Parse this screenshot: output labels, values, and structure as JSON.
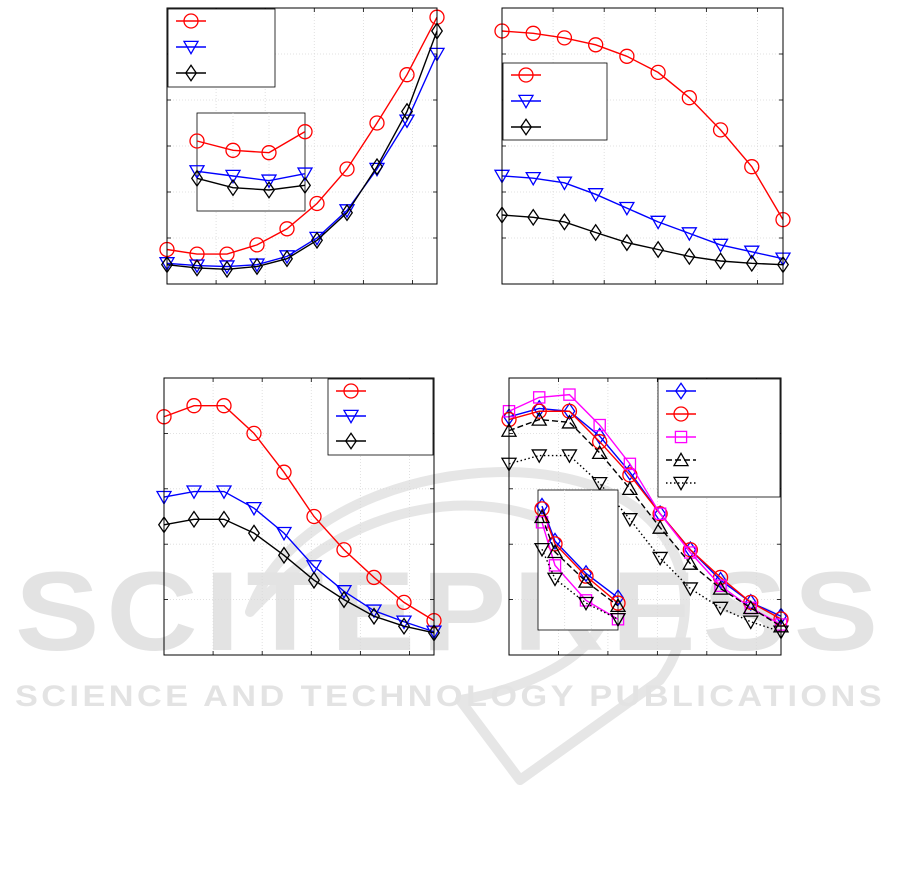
{
  "watermark": {
    "main": "SCITEPRESS",
    "sub": "SCIENCE AND TECHNOLOGY PUBLICATIONS",
    "color": "#e3e3e3"
  },
  "chart_data": [
    {
      "type": "line",
      "title": "",
      "xlabel": "",
      "ylabel": "",
      "x": [
        1,
        2,
        3,
        4,
        5,
        6,
        7,
        8,
        9,
        10
      ],
      "xlim": [
        1,
        10
      ],
      "ylim": [
        0,
        6
      ],
      "grid": true,
      "legend": "top-left",
      "series": [
        {
          "color": "#ff0000",
          "marker": "circle",
          "values": [
            0.75,
            0.65,
            0.65,
            0.85,
            1.2,
            1.75,
            2.5,
            3.5,
            4.55,
            5.8
          ]
        },
        {
          "color": "#0000ff",
          "marker": "triangle-down",
          "values": [
            0.45,
            0.4,
            0.38,
            0.42,
            0.6,
            1.0,
            1.6,
            2.5,
            3.55,
            5.0
          ]
        },
        {
          "color": "#000000",
          "marker": "diamond",
          "values": [
            0.42,
            0.35,
            0.32,
            0.38,
            0.55,
            0.95,
            1.55,
            2.55,
            3.75,
            5.5
          ]
        }
      ],
      "inset": {
        "series": [
          {
            "color": "#ff0000",
            "marker": "circle",
            "values": [
              3.0,
              2.8,
              2.75,
              3.2
            ]
          },
          {
            "color": "#0000ff",
            "marker": "triangle-down",
            "values": [
              2.35,
              2.25,
              2.15,
              2.3
            ]
          },
          {
            "color": "#000000",
            "marker": "diamond",
            "values": [
              2.2,
              2.0,
              1.95,
              2.05
            ]
          }
        ]
      }
    },
    {
      "type": "line",
      "title": "",
      "xlabel": "",
      "ylabel": "",
      "x": [
        1,
        2,
        3,
        4,
        5,
        6,
        7,
        8,
        9,
        10
      ],
      "xlim": [
        1,
        10
      ],
      "ylim": [
        0,
        6
      ],
      "grid": true,
      "legend": "center-left",
      "series": [
        {
          "color": "#ff0000",
          "marker": "circle",
          "values": [
            5.5,
            5.45,
            5.35,
            5.2,
            4.95,
            4.6,
            4.05,
            3.35,
            2.55,
            1.4
          ]
        },
        {
          "color": "#0000ff",
          "marker": "triangle-down",
          "values": [
            2.35,
            2.3,
            2.2,
            1.95,
            1.65,
            1.35,
            1.1,
            0.85,
            0.7,
            0.55
          ]
        },
        {
          "color": "#000000",
          "marker": "diamond",
          "values": [
            1.5,
            1.45,
            1.35,
            1.12,
            0.9,
            0.75,
            0.6,
            0.5,
            0.45,
            0.42
          ]
        }
      ]
    },
    {
      "type": "line",
      "title": "",
      "xlabel": "",
      "ylabel": "",
      "x": [
        1,
        2,
        3,
        4,
        5,
        6,
        7,
        8,
        9,
        10
      ],
      "xlim": [
        1,
        10
      ],
      "ylim": [
        0,
        5
      ],
      "grid": true,
      "legend": "top-right",
      "series": [
        {
          "color": "#ff0000",
          "marker": "circle",
          "values": [
            4.3,
            4.5,
            4.5,
            4.0,
            3.3,
            2.5,
            1.9,
            1.4,
            0.95,
            0.62
          ]
        },
        {
          "color": "#0000ff",
          "marker": "triangle-down",
          "values": [
            2.85,
            2.95,
            2.95,
            2.65,
            2.2,
            1.6,
            1.15,
            0.8,
            0.6,
            0.42
          ]
        },
        {
          "color": "#000000",
          "marker": "diamond",
          "values": [
            2.35,
            2.45,
            2.45,
            2.2,
            1.8,
            1.35,
            1.0,
            0.7,
            0.52,
            0.4
          ]
        }
      ]
    },
    {
      "type": "line",
      "title": "",
      "xlabel": "",
      "ylabel": "",
      "x": [
        1,
        2,
        3,
        4,
        5,
        6,
        7,
        8,
        9,
        10
      ],
      "xlim": [
        1,
        10
      ],
      "ylim": [
        0,
        5
      ],
      "grid": true,
      "legend": "top-right",
      "series": [
        {
          "color": "#0000ff",
          "marker": "diamond",
          "dash": "solid",
          "values": [
            4.3,
            4.45,
            4.4,
            3.95,
            3.3,
            2.55,
            1.9,
            1.35,
            0.95,
            0.7
          ]
        },
        {
          "color": "#ff0000",
          "marker": "circle",
          "dash": "solid",
          "values": [
            4.25,
            4.4,
            4.4,
            3.85,
            3.25,
            2.55,
            1.9,
            1.4,
            0.95,
            0.65
          ]
        },
        {
          "color": "#ff00ff",
          "marker": "square",
          "dash": "solid",
          "values": [
            4.4,
            4.65,
            4.7,
            4.15,
            3.45,
            2.55,
            1.85,
            1.25,
            0.85,
            0.55
          ]
        },
        {
          "color": "#000000",
          "marker": "triangle-up",
          "dash": "dashed",
          "values": [
            4.05,
            4.25,
            4.2,
            3.65,
            3.0,
            2.3,
            1.65,
            1.2,
            0.85,
            0.52
          ]
        },
        {
          "color": "#000000",
          "marker": "triangle-down",
          "dash": "dotted",
          "values": [
            3.45,
            3.6,
            3.6,
            3.1,
            2.45,
            1.75,
            1.2,
            0.85,
            0.6,
            0.42
          ]
        }
      ],
      "inset": {
        "series": [
          {
            "color": "#0000ff",
            "marker": "diamond",
            "dash": "solid",
            "values": [
              3.7,
              3.05,
              2.45,
              2.0
            ]
          },
          {
            "color": "#ff0000",
            "marker": "circle",
            "dash": "solid",
            "values": [
              3.65,
              3.0,
              2.4,
              1.9
            ]
          },
          {
            "color": "#ff00ff",
            "marker": "square",
            "dash": "solid",
            "values": [
              3.4,
              2.6,
              1.95,
              1.6
            ]
          },
          {
            "color": "#000000",
            "marker": "triangle-up",
            "dash": "dashed",
            "values": [
              3.5,
              2.85,
              2.3,
              1.85
            ]
          },
          {
            "color": "#000000",
            "marker": "triangle-down",
            "dash": "dotted",
            "values": [
              2.9,
              2.35,
              1.9,
              1.6
            ]
          }
        ]
      }
    }
  ]
}
